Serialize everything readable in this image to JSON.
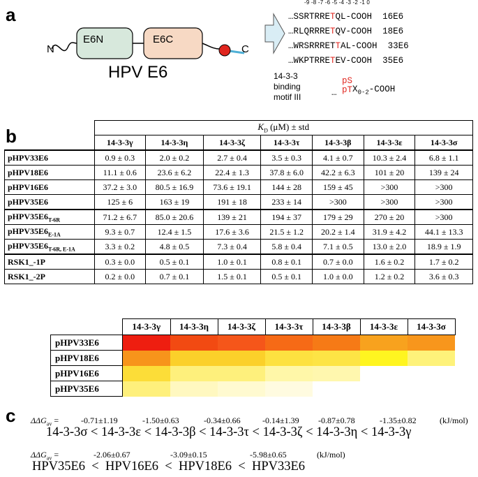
{
  "panel_a": {
    "letter": "a",
    "n_label": "N",
    "c_label": "C",
    "domain1": "E6N",
    "domain2": "E6C",
    "protein": "HPV E6",
    "positions": "-9 -8 -7 -6 -5 -4 -3 -2 -1  0",
    "sequences": [
      {
        "pre": "…SSRTRRETQL",
        "phos": "T",
        "pre_only": "…SSRTRRE",
        "post": "QL-COOH",
        "name": "16E6"
      },
      {
        "pre_only": "…RLQRRRE",
        "phos": "T",
        "post": "QV-COOH",
        "name": "18E6"
      },
      {
        "pre_only": "…WRSRRRET",
        "phos": "",
        "post": "AL-COOH",
        "name": "33E6"
      },
      {
        "pre_only": "…WKPTRRE",
        "phos": "T",
        "post": "EV-COOH",
        "name": "35E6"
      }
    ],
    "motif_label_1": "14-3-3",
    "motif_label_2": "binding",
    "motif_label_3": "motif III",
    "motif_prefix": "…",
    "motif_ps": "pS",
    "motif_pt": "pT",
    "motif_suffix": "X",
    "motif_sub": "0-2",
    "motif_end": "-COOH"
  },
  "panel_b": {
    "letter": "b",
    "header_kd": "K",
    "header_kd_sub": "D",
    "header_kd_rest": " (μM) ± std",
    "columns": [
      "14-3-3γ",
      "14-3-3η",
      "14-3-3ζ",
      "14-3-3τ",
      "14-3-3β",
      "14-3-3ε",
      "14-3-3σ"
    ],
    "rows": [
      {
        "name": "pHPV33E6",
        "sub": "",
        "values": [
          "0.9 ± 0.3",
          "2.0 ± 0.2",
          "2.7 ± 0.4",
          "3.5 ± 0.3",
          "4.1 ± 0.7",
          "10.3 ± 2.4",
          "6.8 ± 1.1"
        ]
      },
      {
        "name": "pHPV18E6",
        "sub": "",
        "values": [
          "11.1 ± 0.6",
          "23.6 ± 6.2",
          "22.4 ± 1.3",
          "37.8 ± 6.0",
          "42.2 ± 6.3",
          "101 ± 20",
          "139 ± 24"
        ]
      },
      {
        "name": "pHPV16E6",
        "sub": "",
        "values": [
          "37.2 ± 3.0",
          "80.5 ± 16.9",
          "73.6 ± 19.1",
          "144 ± 28",
          "159 ± 45",
          ">300",
          ">300"
        ]
      },
      {
        "name": "pHPV35E6",
        "sub": "",
        "values": [
          "125 ± 6",
          "163 ± 19",
          "191 ± 18",
          "233 ± 14",
          ">300",
          ">300",
          ">300"
        ]
      },
      {
        "name": "pHPV35E6",
        "sub": "T-6R",
        "values": [
          "71.2 ± 6.7",
          "85.0 ± 20.6",
          "139 ± 21",
          "194 ± 37",
          "179 ± 29",
          "270 ± 20",
          ">300"
        ]
      },
      {
        "name": "pHPV35E6",
        "sub": "E-1A",
        "values": [
          "9.3 ± 0.7",
          "12.4 ± 1.5",
          "17.6 ± 3.6",
          "21.5 ± 1.2",
          "20.2 ± 1.4",
          "31.9 ± 4.2",
          "44.1 ± 13.3"
        ]
      },
      {
        "name": "pHPV35E6",
        "sub": "T-6R, E-1A",
        "values": [
          "3.3 ± 0.2",
          "4.8 ± 0.5",
          "7.3 ± 0.4",
          "5.8 ± 0.4",
          "7.1 ± 0.5",
          "13.0 ± 2.0",
          "18.9 ± 1.9"
        ]
      },
      {
        "name": "RSK1_-1P",
        "sub": "",
        "values": [
          "0.3 ± 0.0",
          "0.5 ± 0.1",
          "1.0 ± 0.1",
          "0.8 ± 0.1",
          "0.7 ± 0.0",
          "1.6 ± 0.2",
          "1.7 ± 0.2"
        ]
      },
      {
        "name": "RSK1_-2P",
        "sub": "",
        "values": [
          "0.2 ± 0.0",
          "0.7 ± 0.1",
          "1.5 ± 0.1",
          "0.5 ± 0.1",
          "1.0 ± 0.0",
          "1.2 ± 0.2",
          "3.6 ± 0.3"
        ]
      }
    ]
  },
  "heatmap": {
    "columns": [
      "14-3-3γ",
      "14-3-3η",
      "14-3-3ζ",
      "14-3-3τ",
      "14-3-3β",
      "14-3-3ε",
      "14-3-3σ"
    ],
    "rows": [
      {
        "name": "pHPV33E6",
        "colors": [
          "#ee1e10",
          "#f24a12",
          "#f5561a",
          "#f66a16",
          "#f67a16",
          "#f8a21e",
          "#f8961c"
        ]
      },
      {
        "name": "pHPV18E6",
        "colors": [
          "#f7941b",
          "#fbd02a",
          "#fbd02a",
          "#fde140",
          "#fde445",
          "#fff520",
          "#fef27a"
        ]
      },
      {
        "name": "pHPV16E6",
        "colors": [
          "#fcdd38",
          "#fef07c",
          "#fef07c",
          "#fff7a8",
          "#fff7ae",
          "#ffffff",
          "#ffffff"
        ]
      },
      {
        "name": "pHPV35E6",
        "colors": [
          "#fef07c",
          "#fff8c0",
          "#fffad0",
          "#fffbe0",
          "#ffffff",
          "#ffffff",
          "#ffffff"
        ]
      }
    ]
  },
  "panel_c": {
    "letter": "c",
    "ddg_label": "ΔΔG",
    "ddg_sub": "av",
    "ddg_eq": " =",
    "isoform_values": [
      "-0.71±1.19",
      "-1.50±0.63",
      "-0.34±0.66",
      "-0.14±1.39",
      "-0.87±0.78",
      "-1.35±0.82"
    ],
    "unit": "(kJ/mol)",
    "isoform_order": "14-3-3σ < 14-3-3ε < 14-3-3β < 14-3-3τ < 14-3-3ζ < 14-3-3η < 14-3-3γ",
    "peptide_values": [
      "-2.06±0.67",
      "-3.09±0.15",
      "-5.98±0.65"
    ],
    "peptide_unit": "(kJ/mol)",
    "peptide_order": "HPV35E6  <  HPV16E6  <  HPV18E6  <  HPV33E6"
  }
}
